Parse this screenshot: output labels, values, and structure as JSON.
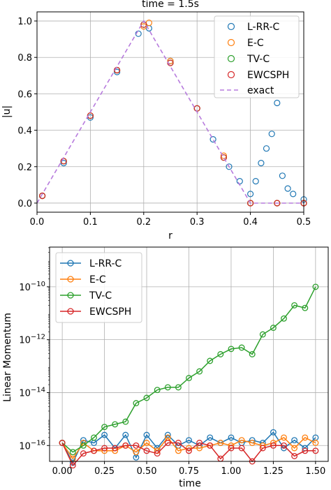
{
  "chart_data": [
    {
      "type": "scatter",
      "title": "time = 1.5s",
      "xlabel": "r",
      "ylabel": "|u|",
      "xlim": [
        0.0,
        0.5
      ],
      "ylim": [
        -0.05,
        1.05
      ],
      "xticks": [
        0.0,
        0.1,
        0.2,
        0.3,
        0.4,
        0.5
      ],
      "xtick_labels": [
        "0.0",
        "0.1",
        "0.2",
        "0.3",
        "0.4",
        "0.5"
      ],
      "yticks": [
        0.0,
        0.2,
        0.4,
        0.6,
        0.8,
        1.0
      ],
      "ytick_labels": [
        "0.0",
        "0.2",
        "0.4",
        "0.6",
        "0.8",
        "1.0"
      ],
      "grid": true,
      "legend_position": "top-right",
      "series": [
        {
          "name": "L-RR-C",
          "kind": "scatter",
          "color": "#1f77b4",
          "points": [
            [
              0.01,
              0.04
            ],
            [
              0.05,
              0.22
            ],
            [
              0.1,
              0.47
            ],
            [
              0.15,
              0.72
            ],
            [
              0.19,
              0.93
            ],
            [
              0.21,
              0.96
            ],
            [
              0.25,
              0.78
            ],
            [
              0.3,
              0.52
            ],
            [
              0.33,
              0.35
            ],
            [
              0.36,
              0.2
            ],
            [
              0.38,
              0.12
            ],
            [
              0.4,
              0.05
            ],
            [
              0.41,
              0.12
            ],
            [
              0.42,
              0.22
            ],
            [
              0.43,
              0.3
            ],
            [
              0.44,
              0.38
            ],
            [
              0.45,
              0.55
            ],
            [
              0.46,
              0.15
            ],
            [
              0.47,
              0.08
            ],
            [
              0.48,
              0.05
            ],
            [
              0.5,
              0.02
            ]
          ]
        },
        {
          "name": "E-C",
          "kind": "scatter",
          "color": "#ff7f0e",
          "points": [
            [
              0.01,
              0.04
            ],
            [
              0.05,
              0.23
            ],
            [
              0.1,
              0.48
            ],
            [
              0.15,
              0.73
            ],
            [
              0.2,
              0.97
            ],
            [
              0.21,
              0.99
            ],
            [
              0.25,
              0.78
            ],
            [
              0.3,
              0.52
            ],
            [
              0.35,
              0.26
            ],
            [
              0.4,
              0.0
            ],
            [
              0.45,
              0.0
            ],
            [
              0.5,
              0.0
            ]
          ]
        },
        {
          "name": "TV-C",
          "kind": "scatter",
          "color": "#2ca02c",
          "points": [
            [
              0.01,
              0.04
            ],
            [
              0.05,
              0.23
            ],
            [
              0.1,
              0.48
            ],
            [
              0.15,
              0.73
            ],
            [
              0.2,
              0.98
            ],
            [
              0.25,
              0.77
            ],
            [
              0.3,
              0.52
            ],
            [
              0.35,
              0.25
            ],
            [
              0.4,
              0.0
            ],
            [
              0.45,
              0.0
            ],
            [
              0.5,
              0.0
            ]
          ]
        },
        {
          "name": "EWCSPH",
          "kind": "scatter",
          "color": "#d62728",
          "points": [
            [
              0.01,
              0.04
            ],
            [
              0.05,
              0.23
            ],
            [
              0.1,
              0.48
            ],
            [
              0.15,
              0.73
            ],
            [
              0.2,
              0.98
            ],
            [
              0.25,
              0.77
            ],
            [
              0.3,
              0.52
            ],
            [
              0.35,
              0.25
            ],
            [
              0.4,
              0.0
            ],
            [
              0.45,
              0.0
            ],
            [
              0.5,
              0.0
            ]
          ]
        },
        {
          "name": "exact",
          "kind": "line",
          "dashed": true,
          "color": "#b77bdd",
          "points": [
            [
              0.0,
              0.0
            ],
            [
              0.2,
              1.0
            ],
            [
              0.4,
              0.0
            ],
            [
              0.5,
              0.0
            ]
          ]
        }
      ]
    },
    {
      "type": "line",
      "xlabel": "time",
      "ylabel": "Linear Momentum",
      "yscale": "log",
      "xlim": [
        -0.075,
        1.575
      ],
      "ylim_log10": [
        -16.6,
        -8.5
      ],
      "xticks": [
        0.0,
        0.25,
        0.5,
        0.75,
        1.0,
        1.25,
        1.5
      ],
      "xtick_labels": [
        "0.00",
        "0.25",
        "0.50",
        "0.75",
        "1.00",
        "1.25",
        "1.50"
      ],
      "yticks_log10": [
        -16,
        -14,
        -12,
        -10
      ],
      "ytick_labels": [
        "10−16",
        "10−14",
        "10−12",
        "10−10"
      ],
      "grid": true,
      "legend_position": "top-left",
      "x": [
        0.0,
        0.0625,
        0.125,
        0.1875,
        0.25,
        0.3125,
        0.375,
        0.4375,
        0.5,
        0.5625,
        0.625,
        0.6875,
        0.75,
        0.8125,
        0.875,
        0.9375,
        1.0,
        1.0625,
        1.125,
        1.1875,
        1.25,
        1.3125,
        1.375,
        1.4375,
        1.5
      ],
      "series": [
        {
          "name": "L-RR-C",
          "color": "#1f77b4",
          "log10_values": [
            -15.9,
            -16.65,
            -15.8,
            -15.9,
            -15.6,
            -16.1,
            -15.6,
            -16.45,
            -15.6,
            -16.1,
            -15.6,
            -16.0,
            -15.8,
            -16.0,
            -15.7,
            -15.9,
            -15.7,
            -15.9,
            -15.8,
            -15.9,
            -15.5,
            -16.1,
            -15.8,
            -16.1,
            -15.7
          ]
        },
        {
          "name": "E-C",
          "color": "#ff7f0e",
          "log10_values": [
            -15.9,
            -16.5,
            -15.9,
            -16.2,
            -16.2,
            -16.2,
            -16.0,
            -16.25,
            -15.9,
            -16.2,
            -15.7,
            -16.2,
            -16.1,
            -16.1,
            -16.0,
            -15.9,
            -16.0,
            -15.8,
            -15.9,
            -16.0,
            -15.9,
            -15.7,
            -16.1,
            -15.7,
            -15.9
          ]
        },
        {
          "name": "TV-C",
          "color": "#2ca02c",
          "log10_values": [
            -15.9,
            -16.25,
            -16.0,
            -15.7,
            -15.3,
            -15.2,
            -15.1,
            -14.4,
            -14.2,
            -13.9,
            -13.8,
            -13.8,
            -13.45,
            -13.2,
            -12.8,
            -12.55,
            -12.35,
            -12.3,
            -12.55,
            -11.8,
            -11.55,
            -11.2,
            -10.7,
            -10.8,
            -10.0
          ]
        },
        {
          "name": "EWCSPH",
          "color": "#d62728",
          "log10_values": [
            -15.9,
            -16.75,
            -16.3,
            -16.2,
            -16.1,
            -16.1,
            -16.0,
            -16.0,
            -16.2,
            -16.3,
            -15.9,
            -15.9,
            -16.2,
            -15.9,
            -16.0,
            -16.5,
            -16.1,
            -16.1,
            -16.6,
            -16.1,
            -16.0,
            -16.0,
            -16.4,
            -16.2,
            -16.2
          ]
        }
      ]
    }
  ]
}
